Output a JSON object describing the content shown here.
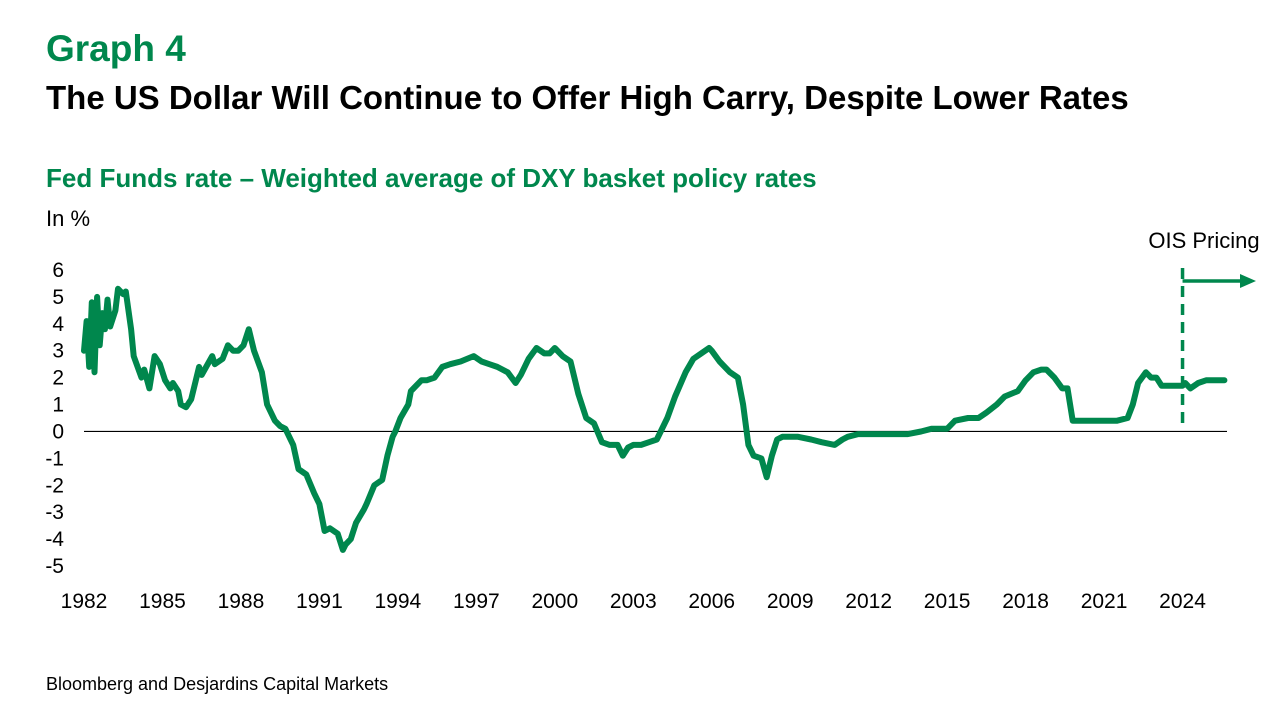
{
  "header": {
    "graph_label": "Graph 4",
    "title": "The US Dollar Will Continue to Offer High Carry, Despite Lower Rates",
    "subtitle": "Fed Funds rate – Weighted average of DXY basket policy rates",
    "unit": "In %"
  },
  "footer": {
    "source": "Bloomberg and Desjardins Capital Markets"
  },
  "colors": {
    "series": "#00874d",
    "text": "#000000",
    "axis": "#000000",
    "title": "#00874d"
  },
  "chart_data": {
    "type": "line",
    "title": "Fed Funds rate – Weighted average of DXY basket policy rates",
    "ylabel": "In %",
    "xlim": [
      1982,
      2025.7
    ],
    "ylim": [
      -5,
      6
    ],
    "x_ticks": [
      "1982",
      "1985",
      "1988",
      "1991",
      "1994",
      "1997",
      "2000",
      "2003",
      "2006",
      "2009",
      "2012",
      "2015",
      "2018",
      "2021",
      "2024"
    ],
    "y_ticks": [
      "6",
      "5",
      "4",
      "3",
      "2",
      "1",
      "0",
      "-1",
      "-2",
      "-3",
      "-4",
      "-5"
    ],
    "grid": false,
    "annotation": {
      "label": "OIS Pricing",
      "x": 2024,
      "style": "dashed vertical line with right arrow"
    },
    "series": [
      {
        "x": [
          1982.0,
          1982.1,
          1982.2,
          1982.3,
          1982.4,
          1982.5,
          1982.6,
          1982.7,
          1982.8,
          1982.9,
          1983.0,
          1983.2,
          1983.3,
          1983.5,
          1983.6,
          1983.8,
          1983.9,
          1984.2,
          1984.3,
          1984.5,
          1984.7,
          1984.9,
          1985.1,
          1985.3,
          1985.4,
          1985.6,
          1985.7,
          1985.9,
          1986.1,
          1986.4,
          1986.5,
          1986.9,
          1987.0,
          1987.3,
          1987.5,
          1987.7,
          1987.9,
          1988.1,
          1988.3,
          1988.5,
          1988.8,
          1989.0,
          1989.3,
          1989.5,
          1989.7,
          1990.0,
          1990.2,
          1990.5,
          1990.8,
          1991.0,
          1991.2,
          1991.4,
          1991.7,
          1991.9,
          1992.0,
          1992.2,
          1992.4,
          1992.7,
          1992.8,
          1993.1,
          1993.4,
          1993.6,
          1993.8,
          1993.9,
          1994.1,
          1994.4,
          1994.5,
          1994.9,
          1995.1,
          1995.4,
          1995.7,
          1996.0,
          1996.4,
          1996.9,
          1997.2,
          1997.5,
          1997.8,
          1998.2,
          1998.5,
          1998.7,
          1999.0,
          1999.3,
          1999.6,
          1999.8,
          2000.0,
          2000.3,
          2000.6,
          2000.9,
          2001.2,
          2001.5,
          2001.8,
          2002.1,
          2002.4,
          2002.6,
          2002.8,
          2003.0,
          2003.3,
          2003.6,
          2003.9,
          2004.3,
          2004.6,
          2005.0,
          2005.3,
          2005.6,
          2005.9,
          2006.0,
          2006.3,
          2006.7,
          2007.0,
          2007.2,
          2007.4,
          2007.6,
          2007.9,
          2008.1,
          2008.3,
          2008.5,
          2008.7,
          2008.9,
          2009.1,
          2009.3,
          2009.8,
          2010.2,
          2010.7,
          2011.0,
          2011.2,
          2011.6,
          2011.8,
          2012.0,
          2012.5,
          2013.0,
          2013.5,
          2014.0,
          2014.4,
          2014.7,
          2015.0,
          2015.3,
          2015.8,
          2016.2,
          2016.5,
          2016.9,
          2017.2,
          2017.7,
          2018.0,
          2018.3,
          2018.6,
          2018.8,
          2019.1,
          2019.4,
          2019.6,
          2019.8,
          2020.0,
          2020.5,
          2021.0,
          2021.5,
          2021.9,
          2022.1,
          2022.3,
          2022.6,
          2022.8,
          2023.0,
          2023.2,
          2023.5,
          2023.8,
          2024.0,
          2024.1,
          2024.3,
          2024.6,
          2024.9,
          2025.2,
          2025.4,
          2025.6
        ],
        "y": [
          3.0,
          4.1,
          2.4,
          4.8,
          2.2,
          5.0,
          3.2,
          4.4,
          3.8,
          4.9,
          3.9,
          4.5,
          5.3,
          5.1,
          5.2,
          3.8,
          2.8,
          2.0,
          2.3,
          1.6,
          2.8,
          2.5,
          1.9,
          1.6,
          1.8,
          1.5,
          1.0,
          0.9,
          1.2,
          2.4,
          2.1,
          2.8,
          2.5,
          2.7,
          3.2,
          3.0,
          3.0,
          3.2,
          3.8,
          3.0,
          2.2,
          1.0,
          0.4,
          0.2,
          0.1,
          -0.5,
          -1.4,
          -1.6,
          -2.3,
          -2.7,
          -3.7,
          -3.6,
          -3.8,
          -4.4,
          -4.2,
          -4.0,
          -3.4,
          -2.9,
          -2.7,
          -2.0,
          -1.8,
          -0.9,
          -0.2,
          0.0,
          0.5,
          1.0,
          1.5,
          1.9,
          1.9,
          2.0,
          2.4,
          2.5,
          2.6,
          2.8,
          2.6,
          2.5,
          2.4,
          2.2,
          1.8,
          2.1,
          2.7,
          3.1,
          2.9,
          2.9,
          3.1,
          2.8,
          2.6,
          1.4,
          0.5,
          0.3,
          -0.4,
          -0.5,
          -0.5,
          -0.9,
          -0.6,
          -0.5,
          -0.5,
          -0.4,
          -0.3,
          0.5,
          1.3,
          2.2,
          2.7,
          2.9,
          3.1,
          3.0,
          2.6,
          2.2,
          2.0,
          1.0,
          -0.5,
          -0.9,
          -1.0,
          -1.7,
          -0.9,
          -0.3,
          -0.2,
          -0.2,
          -0.2,
          -0.2,
          -0.3,
          -0.4,
          -0.5,
          -0.3,
          -0.2,
          -0.1,
          -0.1,
          -0.1,
          -0.1,
          -0.1,
          -0.1,
          0.0,
          0.1,
          0.1,
          0.1,
          0.4,
          0.5,
          0.5,
          0.7,
          1.0,
          1.3,
          1.5,
          1.9,
          2.2,
          2.3,
          2.3,
          2.0,
          1.6,
          1.6,
          0.4,
          0.4,
          0.4,
          0.4,
          0.4,
          0.5,
          1.0,
          1.8,
          2.2,
          2.0,
          2.0,
          1.7,
          1.7,
          1.7,
          1.7,
          1.8,
          1.6,
          1.8,
          1.9,
          1.9,
          1.9,
          1.9
        ]
      }
    ]
  }
}
